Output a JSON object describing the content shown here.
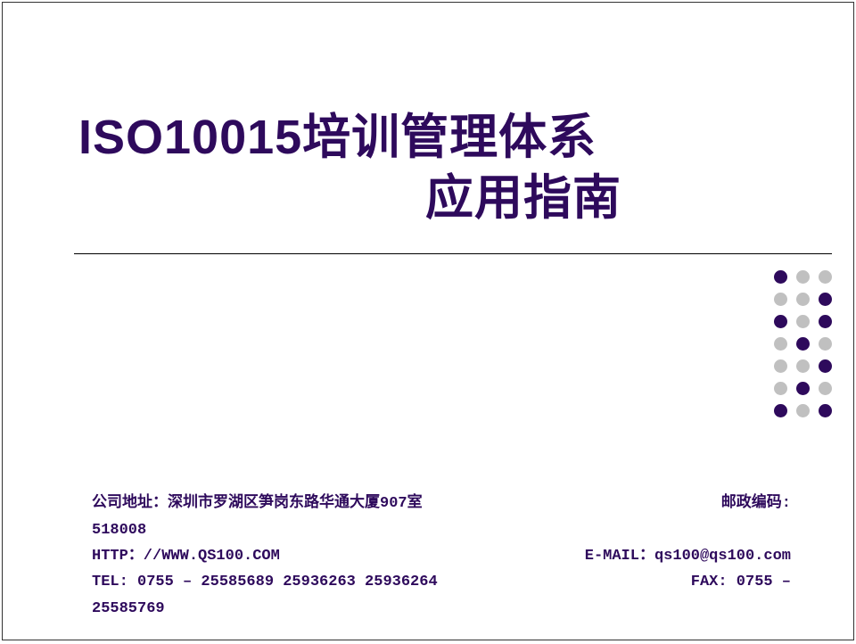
{
  "title": {
    "line1": "ISO10015培训管理体系",
    "line2": "应用指南",
    "color": "#2e0a5c",
    "fontsize": 54,
    "fontweight": "bold"
  },
  "divider": {
    "color": "#000000",
    "thickness": 1
  },
  "dots": {
    "rows": 7,
    "cols": 3,
    "diameter": 15,
    "gap": 10,
    "colors": {
      "dark": "#2e0a5c",
      "light": "#c0c0c0"
    },
    "pattern": [
      [
        "dark",
        "light",
        "light"
      ],
      [
        "light",
        "light",
        "dark"
      ],
      [
        "dark",
        "light",
        "dark"
      ],
      [
        "light",
        "dark",
        "light"
      ],
      [
        "light",
        "light",
        "dark"
      ],
      [
        "light",
        "dark",
        "light"
      ],
      [
        "dark",
        "light",
        "dark"
      ]
    ]
  },
  "footer": {
    "color": "#2e0a5c",
    "fontsize": 17,
    "rows": [
      {
        "left": "公司地址：深圳市罗湖区笋岗东路华通大厦907室",
        "right": "邮政编码:"
      },
      {
        "left": "518008",
        "right": ""
      },
      {
        "left": "HTTP：//WWW.QS100.COM",
        "right": "E-MAIL：qs100@qs100.com"
      },
      {
        "left": "TEL: 0755 – 25585689 25936263 25936264",
        "right": "FAX: 0755 –"
      },
      {
        "left": "25585769",
        "right": ""
      }
    ]
  },
  "background_color": "#ffffff",
  "border_color": "#333333"
}
